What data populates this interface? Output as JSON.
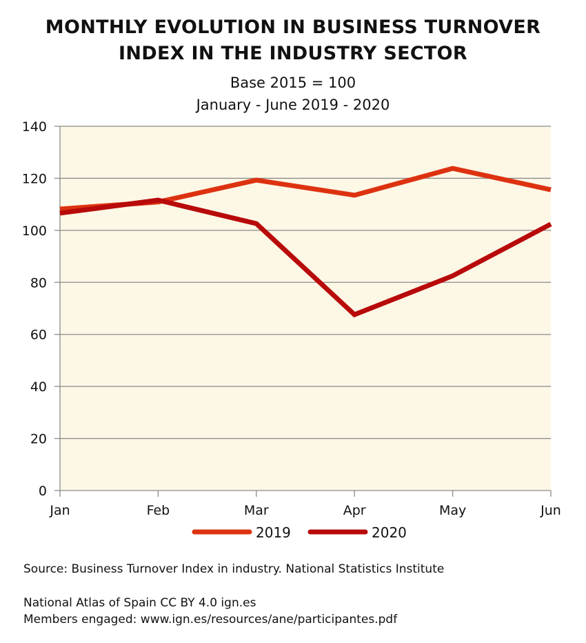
{
  "chart_data": {
    "type": "line",
    "title": "MONTHLY EVOLUTION IN BUSINESS TURNOVER INDEX IN THE INDUSTRY SECTOR",
    "title_lines": [
      "MONTHLY EVOLUTION IN BUSINESS TURNOVER",
      "INDEX IN THE INDUSTRY SECTOR"
    ],
    "subtitle_lines": [
      "Base 2015 = 100",
      "January - June 2019 - 2020"
    ],
    "xlabel": "",
    "ylabel": "",
    "categories": [
      "Jan",
      "Feb",
      "Mar",
      "Apr",
      "May",
      "Jun"
    ],
    "ylim": [
      0,
      140
    ],
    "yticks": [
      0,
      20,
      40,
      60,
      80,
      100,
      120,
      140
    ],
    "grid": true,
    "legend_position": "bottom",
    "background_color": "#fdf7e6",
    "series": [
      {
        "name": "2019",
        "color": "#dd3210",
        "values": [
          108.2,
          110.9,
          119.3,
          113.5,
          123.8,
          115.6
        ]
      },
      {
        "name": "2020",
        "color": "#b80a0a",
        "values": [
          106.6,
          111.6,
          102.6,
          67.6,
          82.5,
          102.4
        ]
      }
    ]
  },
  "footer": {
    "source": "Source: Business Turnover Index in industry. National Statistics Institute",
    "credit": "National Atlas of Spain CC BY 4.0 ign.es",
    "members": "Members engaged: www.ign.es/resources/ane/participantes.pdf"
  }
}
